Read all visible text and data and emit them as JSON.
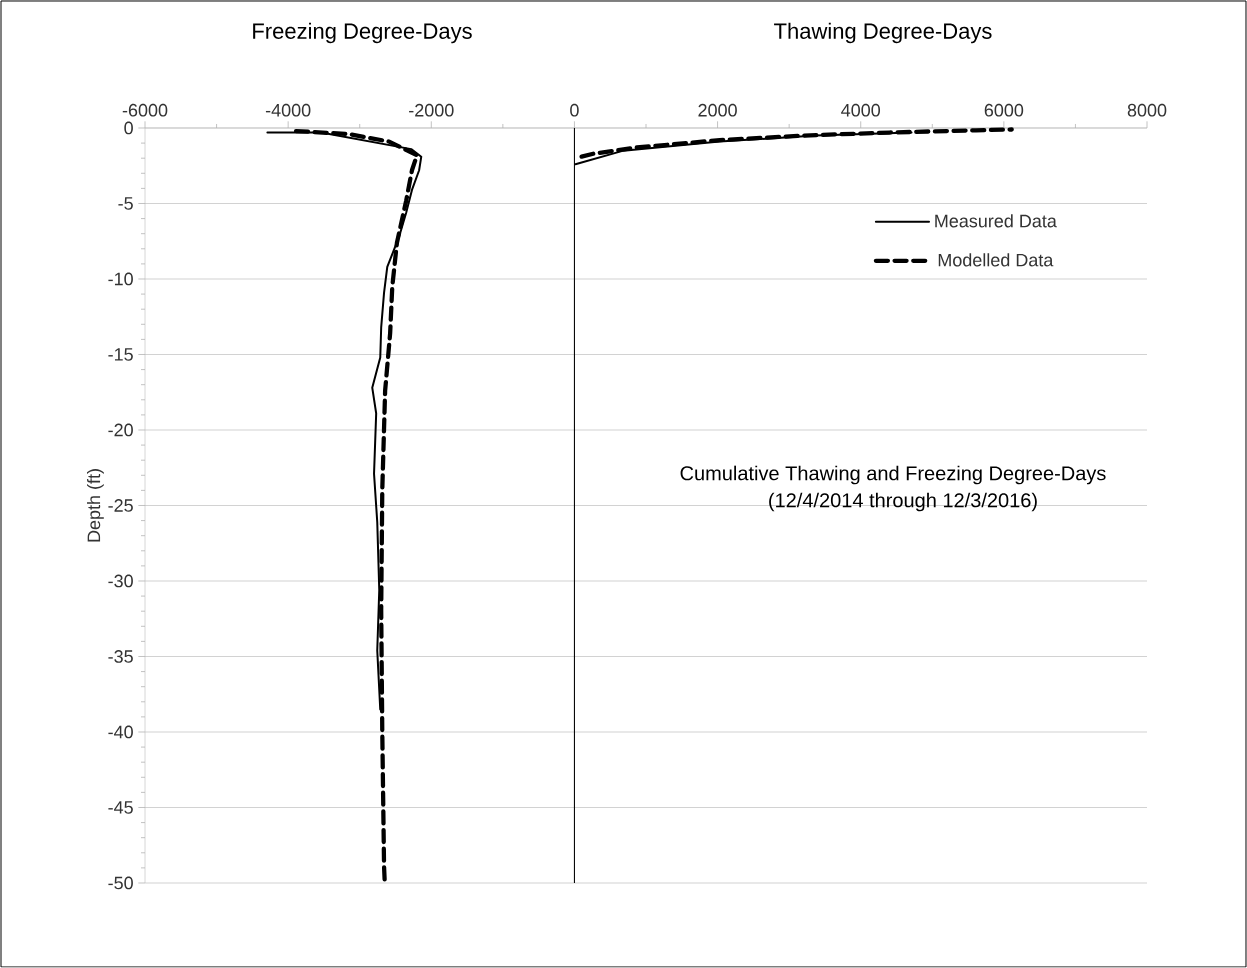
{
  "chart_data": {
    "type": "line",
    "annotations": [
      "Freezing Degree-Days",
      "Thawing Degree-Days",
      "Cumulative Thawing and Freezing Degree-Days",
      "(12/4/2014 through 12/3/2016)"
    ],
    "ylabel": "Depth (ft)",
    "series": [
      {
        "name": "Measured Data",
        "color": "#000000",
        "line_style": "solid",
        "x": [
          -4290,
          -3540,
          -2280,
          -2140,
          -2170,
          -2270,
          -2350,
          -2450,
          -2615,
          -2660,
          -2700,
          -2713,
          -2825,
          -2770,
          -2800,
          -2755,
          -2727,
          -2755,
          -2713
        ],
        "values": [
          -0.3,
          -0.3,
          -1.4,
          -1.9,
          -2.8,
          -4.1,
          -5.6,
          -7.2,
          -9.2,
          -10.9,
          -13.2,
          -15.2,
          -17.2,
          -18.9,
          -22.9,
          -26.1,
          -30.6,
          -34.6,
          -38.5
        ]
      },
      {
        "name": "Modelled Data",
        "color": "#000000",
        "line_style": "dashed",
        "x": [
          -3890,
          -3150,
          -2590,
          -2200,
          -2270,
          -2350,
          -2480,
          -2545,
          -2575,
          -2645,
          -2685,
          -2700,
          -2685,
          -2660,
          -2650
        ],
        "values": [
          -0.2,
          -0.4,
          -0.9,
          -1.8,
          -2.8,
          -4.8,
          -7.6,
          -10.5,
          -13.6,
          -17.4,
          -24.0,
          -31.9,
          -39.9,
          -48.9,
          -50
        ]
      },
      {
        "color": "#000000",
        "line_style": "solid",
        "x": [
          14,
          685,
          2030,
          3370,
          4710
        ],
        "values": [
          -2.4,
          -1.5,
          -0.9,
          -0.5,
          -0.3
        ]
      },
      {
        "color": "#000000",
        "line_style": "dashed",
        "x": [
          100,
          270,
          850,
          2030,
          3200,
          4400,
          5610,
          6110
        ],
        "values": [
          -1.9,
          -1.7,
          -1.3,
          -0.8,
          -0.5,
          -0.3,
          -0.15,
          -0.1
        ]
      }
    ],
    "ref_lines": [
      {
        "axis": "x",
        "value": 0,
        "color": "#000000"
      }
    ],
    "xlim": [
      -6000,
      8000
    ],
    "xticks": [
      -6000,
      {
        "value": -5000,
        "label": null
      },
      -4000,
      {
        "value": -3000,
        "label": null
      },
      -2000,
      {
        "value": -1000,
        "label": null
      },
      0,
      {
        "value": 1000,
        "label": null
      },
      2000,
      {
        "value": 3000,
        "label": null
      },
      4000,
      {
        "value": 5000,
        "label": null
      },
      6000,
      {
        "value": 7000,
        "label": null
      },
      8000
    ],
    "ylim": [
      -50,
      0
    ],
    "yticks": [
      0,
      {
        "value": -1,
        "label": null
      },
      {
        "value": -2,
        "label": null
      },
      {
        "value": -3,
        "label": null
      },
      {
        "value": -4,
        "label": null
      },
      -5,
      {
        "value": -6,
        "label": null
      },
      {
        "value": -7,
        "label": null
      },
      {
        "value": -8,
        "label": null
      },
      {
        "value": -9,
        "label": null
      },
      -10,
      {
        "value": -11,
        "label": null
      },
      {
        "value": -12,
        "label": null
      },
      {
        "value": -13,
        "label": null
      },
      {
        "value": -14,
        "label": null
      },
      -15,
      {
        "value": -16,
        "label": null
      },
      {
        "value": -17,
        "label": null
      },
      {
        "value": -18,
        "label": null
      },
      {
        "value": -19,
        "label": null
      },
      -20,
      {
        "value": -21,
        "label": null
      },
      {
        "value": -22,
        "label": null
      },
      {
        "value": -23,
        "label": null
      },
      {
        "value": -24,
        "label": null
      },
      -25,
      {
        "value": -26,
        "label": null
      },
      {
        "value": -27,
        "label": null
      },
      {
        "value": -28,
        "label": null
      },
      {
        "value": -29,
        "label": null
      },
      -30,
      {
        "value": -31,
        "label": null
      },
      {
        "value": -32,
        "label": null
      },
      {
        "value": -33,
        "label": null
      },
      {
        "value": -34,
        "label": null
      },
      -35,
      {
        "value": -36,
        "label": null
      },
      {
        "value": -37,
        "label": null
      },
      {
        "value": -38,
        "label": null
      },
      {
        "value": -39,
        "label": null
      },
      -40,
      {
        "value": -41,
        "label": null
      },
      {
        "value": -42,
        "label": null
      },
      {
        "value": -43,
        "label": null
      },
      {
        "value": -44,
        "label": null
      },
      -45,
      {
        "value": -46,
        "label": null
      },
      {
        "value": -47,
        "label": null
      },
      {
        "value": -48,
        "label": null
      },
      {
        "value": -49,
        "label": null
      },
      -50
    ],
    "grid": "y",
    "legend": "top right",
    "marker": "none"
  }
}
